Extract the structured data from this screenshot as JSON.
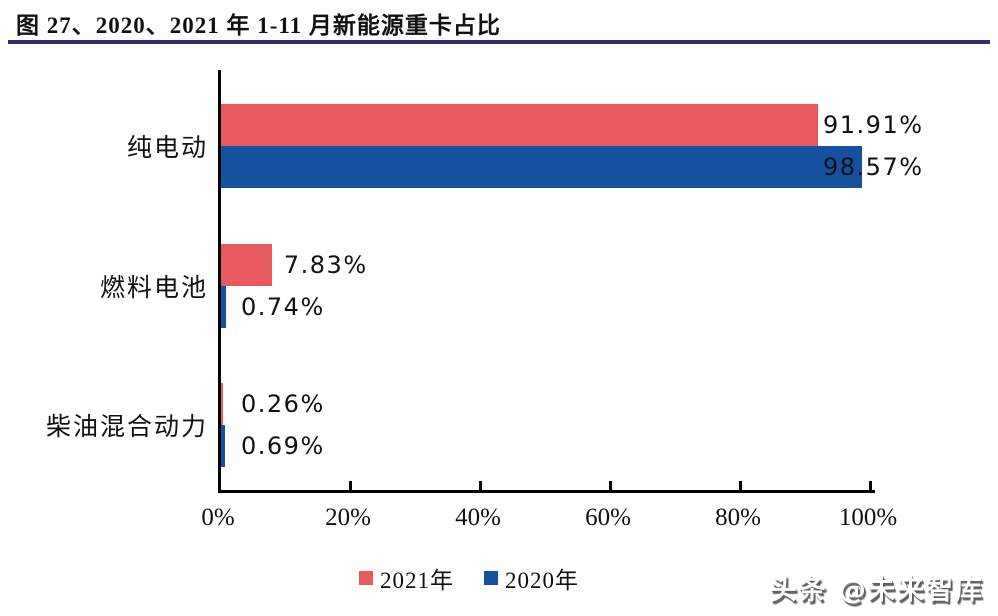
{
  "title": "图 27、2020、2021 年 1-11 月新能源重卡占比",
  "watermark": "头条 @未来智库",
  "colors": {
    "series_2021_red": "#E95A5E",
    "series_2020_blue": "#14519F",
    "title_rule_navy": "#302F66",
    "axis_black": "#000000",
    "text_black": "#111111"
  },
  "chart_data": {
    "type": "bar",
    "orientation": "horizontal",
    "title": "图 27、2020、2021 年 1-11 月新能源重卡占比",
    "categories": [
      "纯电动",
      "燃料电池",
      "柴油混合动力"
    ],
    "series": [
      {
        "name": "2021年",
        "color": "#E95A5E",
        "values": [
          91.91,
          7.83,
          0.26
        ],
        "labels": [
          "91.91%",
          "7.83%",
          "0.26%"
        ]
      },
      {
        "name": "2020年",
        "color": "#14519F",
        "values": [
          98.57,
          0.74,
          0.69
        ],
        "labels": [
          "98.57%",
          "0.74%",
          "0.69%"
        ]
      }
    ],
    "xlabel": "",
    "ylabel": "",
    "xlim": [
      0,
      100
    ],
    "x_ticks": [
      "0%",
      "20%",
      "40%",
      "60%",
      "80%",
      "100%"
    ],
    "grid": false,
    "legend_position": "bottom-center",
    "value_labels_shown": true
  }
}
